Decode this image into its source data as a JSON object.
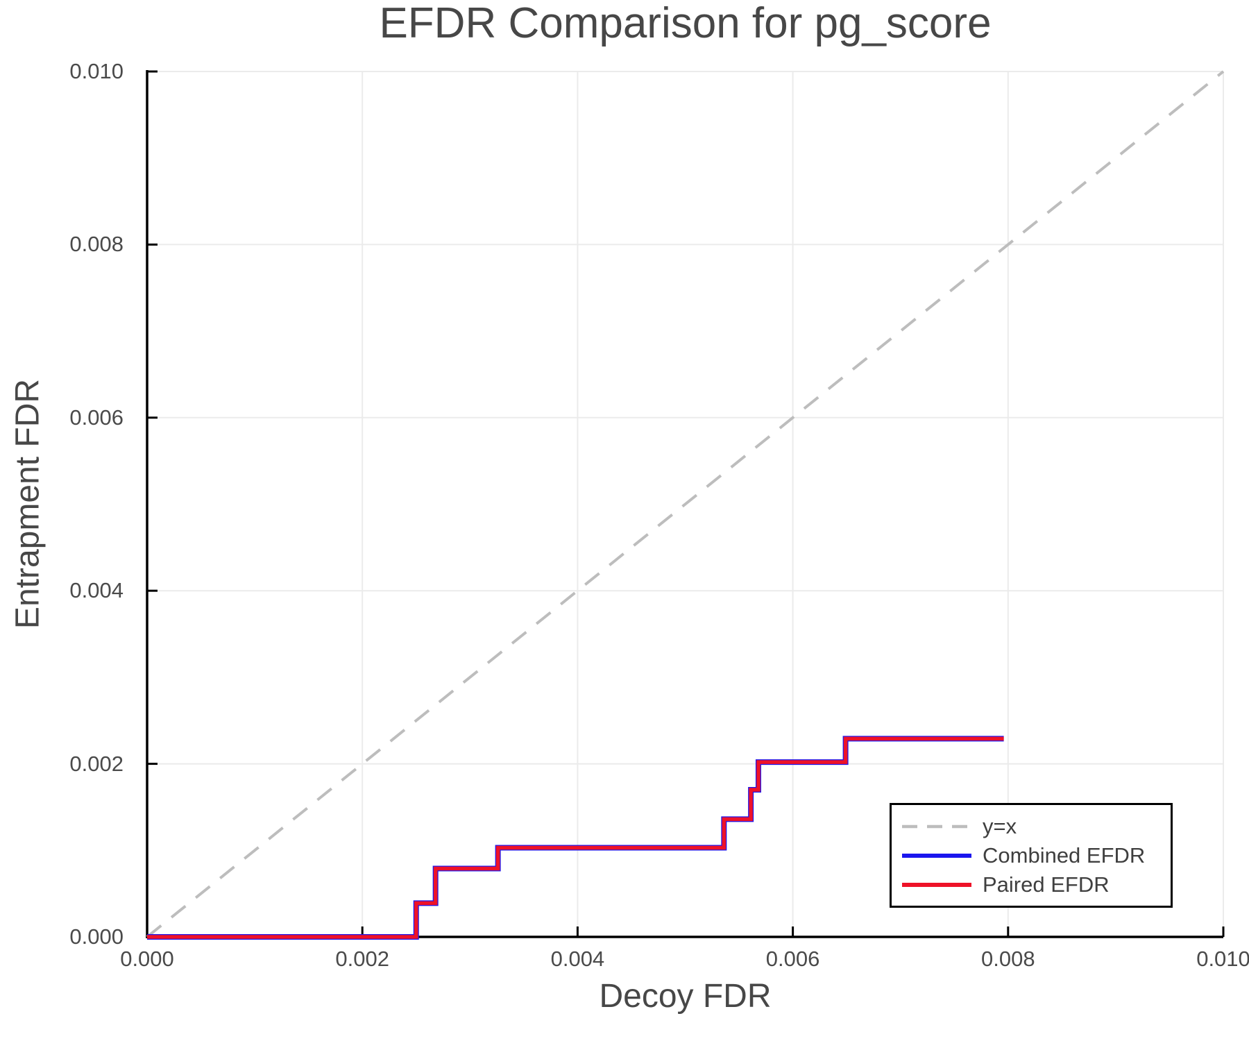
{
  "chart_data": {
    "type": "line",
    "title": "EFDR Comparison for pg_score",
    "xlabel": "Decoy FDR",
    "ylabel": "Entrapment FDR",
    "xlim": [
      0.0,
      0.01
    ],
    "ylim": [
      0.0,
      0.01
    ],
    "grid": true,
    "x_ticks": {
      "values": [
        0.0,
        0.002,
        0.004,
        0.006,
        0.008,
        0.01
      ],
      "labels": [
        "0.000",
        "0.002",
        "0.004",
        "0.006",
        "0.008",
        "0.010"
      ]
    },
    "y_ticks": {
      "values": [
        0.0,
        0.002,
        0.004,
        0.006,
        0.008,
        0.01
      ],
      "labels": [
        "0.000",
        "0.002",
        "0.004",
        "0.006",
        "0.008",
        "0.010"
      ]
    },
    "colors": {
      "grid": "#ebebeb",
      "spine": "#000000",
      "tick": "#000000",
      "text": "#4a4a4a",
      "identity_line": "#bdbdbd",
      "combined_efdr": "#1b15ee",
      "paired_efdr": "#ee1228"
    },
    "legend": {
      "position": "bottom-right",
      "items": [
        {
          "label": "y=x",
          "color": "#bdbdbd",
          "dash": true
        },
        {
          "label": "Combined EFDR",
          "color": "#1b15ee",
          "dash": false
        },
        {
          "label": "Paired EFDR",
          "color": "#ee1228",
          "dash": false
        }
      ]
    },
    "series": [
      {
        "name": "y=x",
        "color": "#bdbdbd",
        "dash": [
          26,
          19
        ],
        "width": 4,
        "points": [
          [
            0.0,
            0.0
          ],
          [
            0.01,
            0.01
          ]
        ]
      },
      {
        "name": "Combined EFDR",
        "color": "#1b15ee",
        "dash": null,
        "width": 8,
        "points": [
          [
            0.0,
            0.0
          ],
          [
            0.0025,
            0.0
          ],
          [
            0.0025,
            0.00039
          ],
          [
            0.00268,
            0.00039
          ],
          [
            0.00268,
            0.00079
          ],
          [
            0.00326,
            0.00079
          ],
          [
            0.00326,
            0.00103
          ],
          [
            0.00536,
            0.00103
          ],
          [
            0.00536,
            0.00136
          ],
          [
            0.00561,
            0.00136
          ],
          [
            0.00561,
            0.0017
          ],
          [
            0.00568,
            0.0017
          ],
          [
            0.00568,
            0.00202
          ],
          [
            0.00649,
            0.00202
          ],
          [
            0.00649,
            0.00229
          ],
          [
            0.00796,
            0.00229
          ]
        ]
      },
      {
        "name": "Paired EFDR",
        "color": "#ee1228",
        "dash": null,
        "width": 5.5,
        "points": [
          [
            0.0,
            0.0
          ],
          [
            0.0025,
            0.0
          ],
          [
            0.0025,
            0.00039
          ],
          [
            0.00268,
            0.00039
          ],
          [
            0.00268,
            0.00079
          ],
          [
            0.00326,
            0.00079
          ],
          [
            0.00326,
            0.00103
          ],
          [
            0.00536,
            0.00103
          ],
          [
            0.00536,
            0.00136
          ],
          [
            0.00561,
            0.00136
          ],
          [
            0.00561,
            0.0017
          ],
          [
            0.00568,
            0.0017
          ],
          [
            0.00568,
            0.00202
          ],
          [
            0.00649,
            0.00202
          ],
          [
            0.00649,
            0.00229
          ],
          [
            0.00796,
            0.00229
          ]
        ]
      }
    ]
  }
}
